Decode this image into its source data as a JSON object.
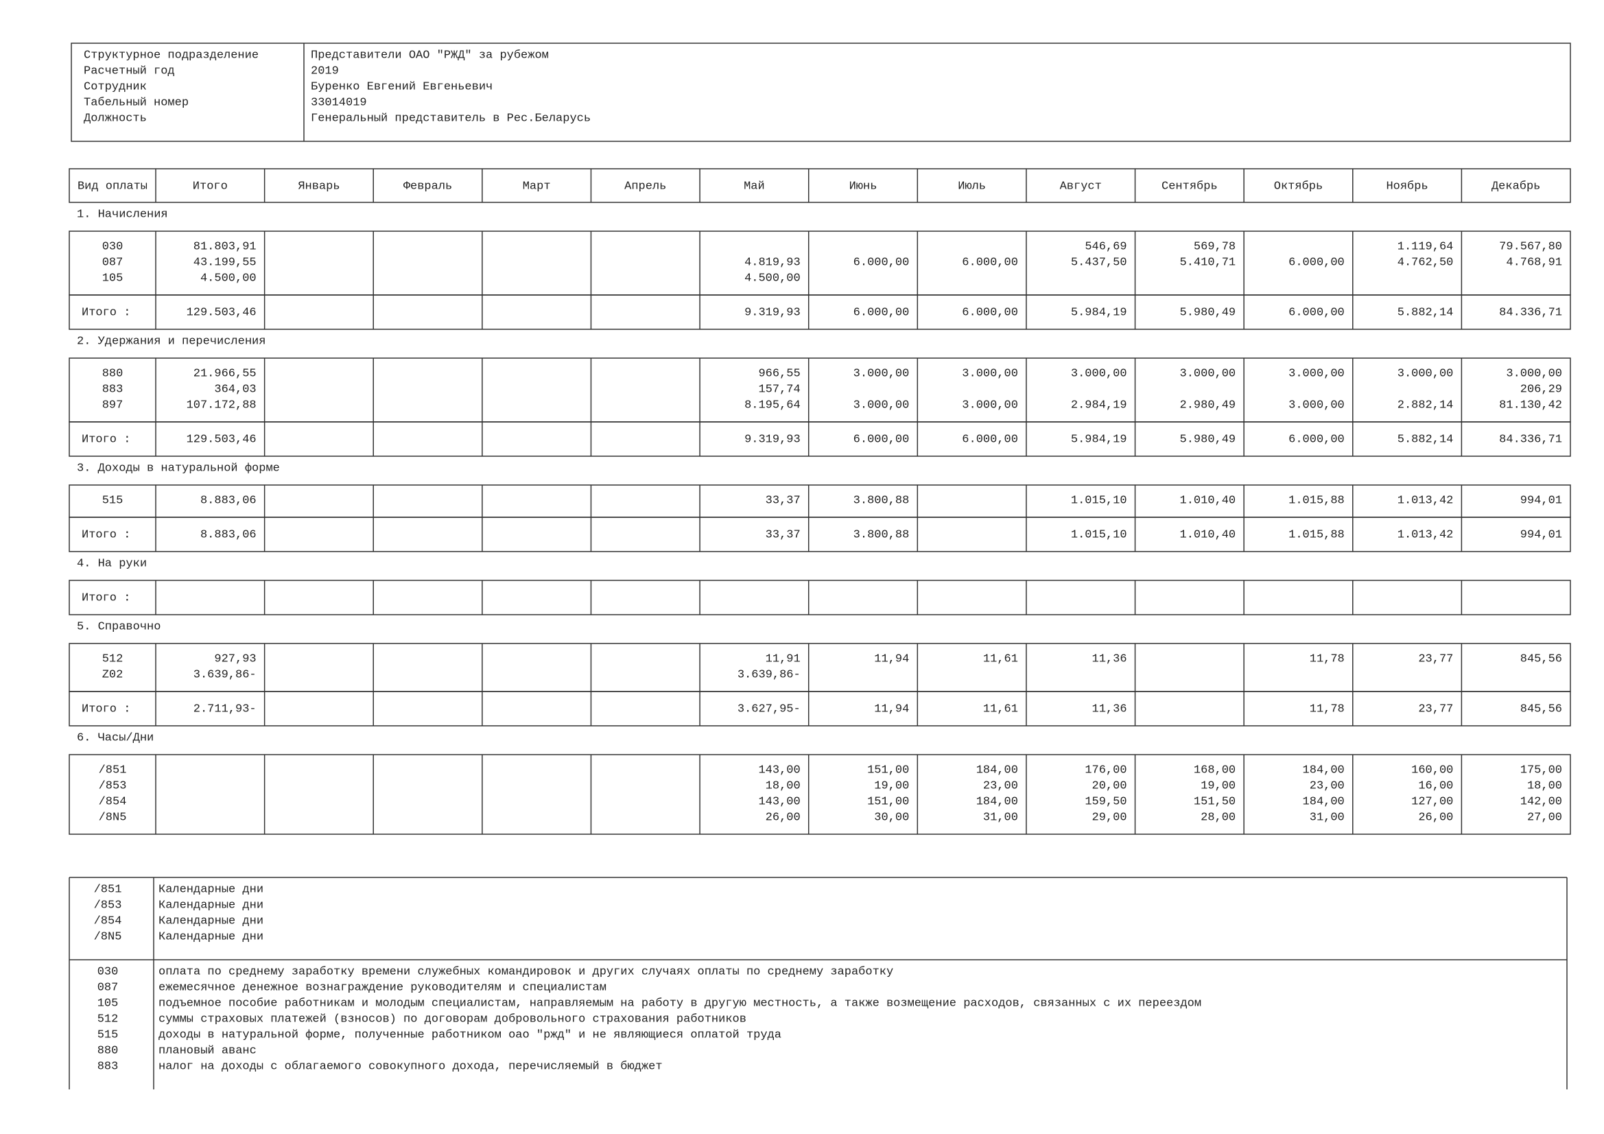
{
  "header": {
    "rows": [
      {
        "label": "Структурное подразделение",
        "value": "Представители ОАО \"РЖД\" за рубежом"
      },
      {
        "label": "Расчетный год",
        "value": "2019"
      },
      {
        "label": "Сотрудник",
        "value": "Буренко Евгений Евгеньевич"
      },
      {
        "label": "Табельный номер",
        "value": "33014019"
      },
      {
        "label": "Должность",
        "value": "Генеральный представитель в Рес.Беларусь"
      }
    ]
  },
  "table": {
    "columns": [
      "Вид оплаты",
      "Итого",
      "Январь",
      "Февраль",
      "Март",
      "Апрель",
      "Май",
      "Июнь",
      "Июль",
      "Август",
      "Сентябрь",
      "Октябрь",
      "Ноябрь",
      "Декабрь"
    ],
    "sections": [
      {
        "title": "1. Начисления",
        "rows": [
          {
            "code": "030",
            "cells": [
              "81.803,91",
              null,
              null,
              null,
              null,
              null,
              null,
              null,
              "546,69",
              "569,78",
              null,
              "1.119,64",
              "79.567,80"
            ]
          },
          {
            "code": "087",
            "cells": [
              "43.199,55",
              null,
              null,
              null,
              null,
              "4.819,93",
              "6.000,00",
              "6.000,00",
              "5.437,50",
              "5.410,71",
              "6.000,00",
              "4.762,50",
              "4.768,91"
            ]
          },
          {
            "code": "105",
            "cells": [
              "4.500,00",
              null,
              null,
              null,
              null,
              "4.500,00",
              null,
              null,
              null,
              null,
              null,
              null,
              null
            ]
          }
        ],
        "total": {
          "label": "Итого :",
          "cells": [
            "129.503,46",
            null,
            null,
            null,
            null,
            "9.319,93",
            "6.000,00",
            "6.000,00",
            "5.984,19",
            "5.980,49",
            "6.000,00",
            "5.882,14",
            "84.336,71"
          ]
        }
      },
      {
        "title": "2. Удержания и перечисления",
        "rows": [
          {
            "code": "880",
            "cells": [
              "21.966,55",
              null,
              null,
              null,
              null,
              "966,55",
              "3.000,00",
              "3.000,00",
              "3.000,00",
              "3.000,00",
              "3.000,00",
              "3.000,00",
              "3.000,00"
            ]
          },
          {
            "code": "883",
            "cells": [
              "364,03",
              null,
              null,
              null,
              null,
              "157,74",
              null,
              null,
              null,
              null,
              null,
              null,
              "206,29"
            ]
          },
          {
            "code": "897",
            "cells": [
              "107.172,88",
              null,
              null,
              null,
              null,
              "8.195,64",
              "3.000,00",
              "3.000,00",
              "2.984,19",
              "2.980,49",
              "3.000,00",
              "2.882,14",
              "81.130,42"
            ]
          }
        ],
        "total": {
          "label": "Итого :",
          "cells": [
            "129.503,46",
            null,
            null,
            null,
            null,
            "9.319,93",
            "6.000,00",
            "6.000,00",
            "5.984,19",
            "5.980,49",
            "6.000,00",
            "5.882,14",
            "84.336,71"
          ]
        }
      },
      {
        "title": "3. Доходы в натуральной форме",
        "rows": [
          {
            "code": "515",
            "cells": [
              "8.883,06",
              null,
              null,
              null,
              null,
              "33,37",
              "3.800,88",
              null,
              "1.015,10",
              "1.010,40",
              "1.015,88",
              "1.013,42",
              "994,01"
            ]
          }
        ],
        "total": {
          "label": "Итого :",
          "cells": [
            "8.883,06",
            null,
            null,
            null,
            null,
            "33,37",
            "3.800,88",
            null,
            "1.015,10",
            "1.010,40",
            "1.015,88",
            "1.013,42",
            "994,01"
          ]
        }
      },
      {
        "title": "4. На руки",
        "rows": [],
        "total": {
          "label": "Итого :",
          "cells": [
            null,
            null,
            null,
            null,
            null,
            null,
            null,
            null,
            null,
            null,
            null,
            null,
            null
          ]
        }
      },
      {
        "title": "5. Справочно",
        "rows": [
          {
            "code": "512",
            "cells": [
              "927,93",
              null,
              null,
              null,
              null,
              "11,91",
              "11,94",
              "11,61",
              "11,36",
              null,
              "11,78",
              "23,77",
              "845,56"
            ]
          },
          {
            "code": "Z02",
            "cells": [
              "3.639,86-",
              null,
              null,
              null,
              null,
              "3.639,86-",
              null,
              null,
              null,
              null,
              null,
              null,
              null
            ]
          }
        ],
        "total": {
          "label": "Итого :",
          "cells": [
            "2.711,93-",
            null,
            null,
            null,
            null,
            "3.627,95-",
            "11,94",
            "11,61",
            "11,36",
            null,
            "11,78",
            "23,77",
            "845,56"
          ]
        }
      },
      {
        "title": "6. Часы/Дни",
        "rows": [
          {
            "code": "/851",
            "cells": [
              null,
              null,
              null,
              null,
              null,
              "143,00",
              "151,00",
              "184,00",
              "176,00",
              "168,00",
              "184,00",
              "160,00",
              "175,00"
            ]
          },
          {
            "code": "/853",
            "cells": [
              null,
              null,
              null,
              null,
              null,
              "18,00",
              "19,00",
              "23,00",
              "20,00",
              "19,00",
              "23,00",
              "16,00",
              "18,00"
            ]
          },
          {
            "code": "/854",
            "cells": [
              null,
              null,
              null,
              null,
              null,
              "143,00",
              "151,00",
              "184,00",
              "159,50",
              "151,50",
              "184,00",
              "127,00",
              "142,00"
            ]
          },
          {
            "code": "/8N5",
            "cells": [
              null,
              null,
              null,
              null,
              null,
              "26,00",
              "30,00",
              "31,00",
              "29,00",
              "28,00",
              "31,00",
              "26,00",
              "27,00"
            ]
          }
        ]
      }
    ]
  },
  "legend": {
    "groups": [
      [
        {
          "code": "/851",
          "text": "Календарные дни"
        },
        {
          "code": "/853",
          "text": "Календарные дни"
        },
        {
          "code": "/854",
          "text": "Календарные дни"
        },
        {
          "code": "/8N5",
          "text": "Календарные дни"
        }
      ],
      [
        {
          "code": "030",
          "text": "оплата по среднему заработку времени служебных командировок и других случаях оплаты по среднему заработку"
        },
        {
          "code": "087",
          "text": "ежемесячное денежное вознаграждение руководителям и специалистам"
        },
        {
          "code": "105",
          "text": "подъемное пособие работникам и молодым специалистам, направляемым на работу в другую местность, а также возмещение расходов, связанных с их переездом"
        },
        {
          "code": "512",
          "text": "суммы страховых платежей (взносов) по договорам добровольного страхования работников"
        },
        {
          "code": "515",
          "text": "доходы в натуральной форме, полученные работником оао \"ржд\" и не являющиеся оплатой труда"
        },
        {
          "code": "880",
          "text": "плановый аванс"
        },
        {
          "code": "883",
          "text": "налог на доходы с облагаемого совокупного дохода, перечисляемый в бюджет"
        }
      ]
    ]
  }
}
